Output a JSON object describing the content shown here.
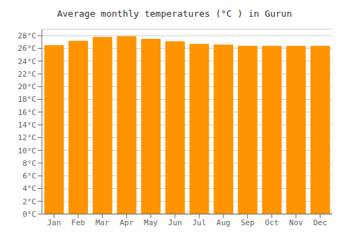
{
  "chart_data": {
    "type": "bar",
    "title": "Average monthly temperatures (°C ) in Gurun",
    "categories": [
      "Jan",
      "Feb",
      "Mar",
      "Apr",
      "May",
      "Jun",
      "Jul",
      "Aug",
      "Sep",
      "Oct",
      "Nov",
      "Dec"
    ],
    "values": [
      26.5,
      27.2,
      27.8,
      27.9,
      27.5,
      27.1,
      26.7,
      26.6,
      26.4,
      26.4,
      26.4,
      26.4
    ],
    "color": "#FF9400",
    "ylim": [
      0,
      29
    ],
    "yticks": [
      {
        "value": 0,
        "label": "0°C"
      },
      {
        "value": 2,
        "label": "2°C"
      },
      {
        "value": 4,
        "label": "4°C"
      },
      {
        "value": 6,
        "label": "6°C"
      },
      {
        "value": 8,
        "label": "8°C"
      },
      {
        "value": 10,
        "label": "10°C"
      },
      {
        "value": 12,
        "label": "12°C"
      },
      {
        "value": 14,
        "label": "14°C"
      },
      {
        "value": 16,
        "label": "16°C"
      },
      {
        "value": 18,
        "label": "18°C"
      },
      {
        "value": 20,
        "label": "20°C"
      },
      {
        "value": 22,
        "label": "22°C"
      },
      {
        "value": 24,
        "label": "24°C"
      },
      {
        "value": 26,
        "label": "26°C"
      },
      {
        "value": 28,
        "label": "28°C"
      }
    ],
    "grid": true
  }
}
